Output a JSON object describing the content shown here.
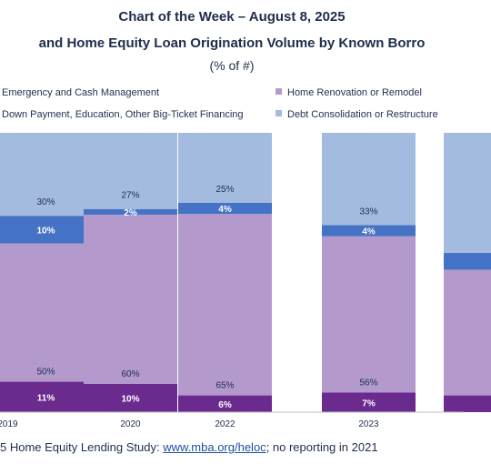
{
  "header": {
    "title_line1": "Chart of the Week – August 8, 2025",
    "title_line2": "and Home Equity Loan Origination Volume by Known Borro",
    "unit": "(% of #)"
  },
  "colors": {
    "emergency": "#6a2a8e",
    "renovation": "#b399cc",
    "downpayment": "#4472c4",
    "debt": "#a4bbe0"
  },
  "legend": [
    {
      "key": "emergency",
      "label": "Emergency and Cash Management"
    },
    {
      "key": "renovation",
      "label": "Home Renovation or Remodel"
    },
    {
      "key": "downpayment",
      "label": "Down Payment, Education, Other Big-Ticket Financing"
    },
    {
      "key": "debt",
      "label": "Debt Consolidation or Restructure"
    }
  ],
  "chart_data": {
    "type": "bar",
    "stacked": true,
    "categories": [
      "2019",
      "2020",
      "2022",
      "2023",
      ""
    ],
    "series": [
      {
        "name": "Emergency and Cash Management",
        "key": "emergency",
        "values": [
          11,
          10,
          6,
          7,
          6
        ],
        "labels": [
          "11%",
          "10%",
          "6%",
          "7%",
          ""
        ]
      },
      {
        "name": "Home Renovation or Remodel",
        "key": "renovation",
        "values": [
          50,
          60,
          65,
          56,
          45
        ],
        "labels": [
          "50%",
          "60%",
          "65%",
          "56%",
          ""
        ]
      },
      {
        "name": "Down Payment, Education, Other Big-Ticket Financing",
        "key": "downpayment",
        "values": [
          10,
          2,
          4,
          4,
          6
        ],
        "labels": [
          "10%",
          "2%",
          "4%",
          "4%",
          ""
        ]
      },
      {
        "name": "Debt Consolidation or Restructure",
        "key": "debt",
        "values": [
          30,
          27,
          25,
          33,
          43
        ],
        "labels": [
          "30%",
          "27%",
          "25%",
          "33%",
          ""
        ]
      }
    ],
    "ylim": [
      0,
      100
    ]
  },
  "footer": {
    "prefix": "5 Home Equity Lending Study: ",
    "link": "www.mba.org/heloc",
    "suffix": "; no reporting in 2021"
  }
}
